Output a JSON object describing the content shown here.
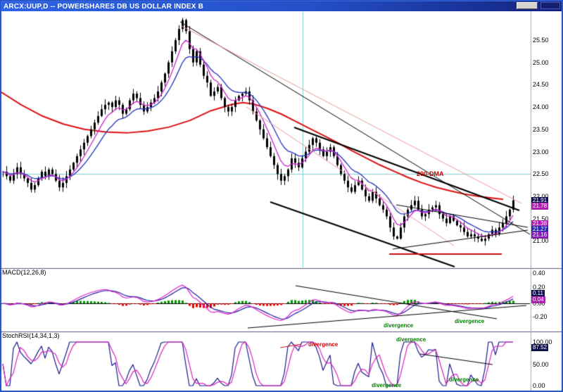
{
  "window": {
    "title": "ARCX:UUP,D -- POWERSHARES DB US DOLLAR INDEX B"
  },
  "chart_data": {
    "type": "candlestick",
    "symbol": "ARCX:UUP",
    "timeframe": "D",
    "price_panel": {
      "y_range": [
        20.4,
        26.15
      ],
      "ticks": [
        {
          "label": "25.50",
          "y": 57
        },
        {
          "label": "25.00",
          "y": 89
        },
        {
          "label": "24.50",
          "y": 120
        },
        {
          "label": "24.00",
          "y": 152
        },
        {
          "label": "23.50",
          "y": 184
        },
        {
          "label": "23.00",
          "y": 216
        },
        {
          "label": "22.50",
          "y": 247
        },
        {
          "label": "22.00",
          "y": 279
        },
        {
          "label": "21.50",
          "y": 311
        },
        {
          "label": "21.00",
          "y": 342
        }
      ],
      "boxed_labels": [
        {
          "label": "21.91",
          "y": 285,
          "bg": "#10104f"
        },
        {
          "label": "21.78",
          "y": 293,
          "bg": "#b020b0"
        },
        {
          "label": "21.38",
          "y": 318,
          "bg": "#b020b0"
        },
        {
          "label": "21.27",
          "y": 326,
          "bg": "#2a2ab0"
        },
        {
          "label": "21.16",
          "y": 334,
          "bg": "#8820b8"
        }
      ],
      "x_start": 4,
      "x_step": 5,
      "closes": [
        22.55,
        22.45,
        22.35,
        22.5,
        22.65,
        22.5,
        22.4,
        22.3,
        22.15,
        22.25,
        22.4,
        22.55,
        22.45,
        22.6,
        22.5,
        22.35,
        22.2,
        22.3,
        22.45,
        22.6,
        22.75,
        22.9,
        23.05,
        23.2,
        23.35,
        23.5,
        23.65,
        23.8,
        23.95,
        24.05,
        24.1,
        24.0,
        24.15,
        24.05,
        23.85,
        23.95,
        24.15,
        24.3,
        24.2,
        24.05,
        23.9,
        24.0,
        24.1,
        24.2,
        24.35,
        24.55,
        24.75,
        25.0,
        25.25,
        25.5,
        25.75,
        25.95,
        25.7,
        25.3,
        25.0,
        25.25,
        24.95,
        24.7,
        24.55,
        24.25,
        24.35,
        24.45,
        24.2,
        24.0,
        23.9,
        24.0,
        24.15,
        24.25,
        24.3,
        24.35,
        24.15,
        23.9,
        23.7,
        23.5,
        23.3,
        23.1,
        22.9,
        22.7,
        22.5,
        22.35,
        22.45,
        22.6,
        22.85,
        22.75,
        22.65,
        22.85,
        23.0,
        23.15,
        23.3,
        23.2,
        23.05,
        22.9,
        23.0,
        23.1,
        22.9,
        22.7,
        22.5,
        22.35,
        22.2,
        22.1,
        22.25,
        22.35,
        22.15,
        22.0,
        21.9,
        22.1,
        21.95,
        21.8,
        21.7,
        21.55,
        21.3,
        21.1,
        21.05,
        21.3,
        21.55,
        21.7,
        21.8,
        21.9,
        21.7,
        21.55,
        21.6,
        21.7,
        21.75,
        21.8,
        21.6,
        21.5,
        21.4,
        21.55,
        21.45,
        21.35,
        21.3,
        21.2,
        21.1,
        21.15,
        21.1,
        21.05,
        21.0,
        21.05,
        21.15,
        21.25,
        21.15,
        21.3,
        21.4,
        21.55,
        21.7,
        21.91
      ],
      "dma200": [
        [
          0,
          24.35
        ],
        [
          30,
          24.05
        ],
        [
          60,
          23.8
        ],
        [
          90,
          23.62
        ],
        [
          120,
          23.5
        ],
        [
          150,
          23.44
        ],
        [
          180,
          23.42
        ],
        [
          210,
          23.46
        ],
        [
          240,
          23.55
        ],
        [
          270,
          23.7
        ],
        [
          300,
          23.92
        ],
        [
          330,
          24.06
        ],
        [
          345,
          24.1
        ],
        [
          360,
          24.07
        ],
        [
          380,
          23.97
        ],
        [
          400,
          23.84
        ],
        [
          420,
          23.68
        ],
        [
          440,
          23.52
        ],
        [
          460,
          23.36
        ],
        [
          480,
          23.2
        ],
        [
          500,
          23.02
        ],
        [
          520,
          22.86
        ],
        [
          540,
          22.7
        ],
        [
          560,
          22.56
        ],
        [
          580,
          22.42
        ],
        [
          600,
          22.3
        ],
        [
          620,
          22.2
        ],
        [
          640,
          22.12
        ],
        [
          660,
          22.05
        ],
        [
          680,
          22.0
        ],
        [
          700,
          21.96
        ],
        [
          715,
          21.93
        ]
      ],
      "annotations": [
        {
          "text": "200-DMA",
          "x": 592,
          "y": 243,
          "color": "#cc0000",
          "size": 9
        }
      ]
    },
    "macd_panel": {
      "title": "MACD(12,26,8)",
      "title_pos": {
        "x": 3,
        "y": 383
      },
      "y_range": [
        -0.38,
        0.44
      ],
      "ticks": [
        {
          "label": "0.40",
          "y": 388
        },
        {
          "label": "0.20",
          "y": 408
        },
        {
          "label": "0.00",
          "y": 431
        },
        {
          "label": "-0.20",
          "y": 450
        }
      ],
      "boxed_labels": [
        {
          "label": "0.11",
          "y": 417,
          "bg": "#10104f"
        },
        {
          "label": "0.04",
          "y": 426,
          "bg": "#b020b0"
        }
      ],
      "annotations": [
        {
          "text": "divergence",
          "x": 545,
          "y": 459,
          "color": "#008000",
          "size": 8
        },
        {
          "text": "divergence",
          "x": 646,
          "y": 453,
          "color": "#008000",
          "size": 8
        }
      ]
    },
    "stochrsi_panel": {
      "title": "StochRSI(14,34,1,3)",
      "title_pos": {
        "x": 3,
        "y": 473
      },
      "y_range": [
        0,
        100
      ],
      "ticks": [
        {
          "label": "100.00",
          "y": 486
        },
        {
          "label": "50.00",
          "y": 518
        },
        {
          "label": "0.00",
          "y": 548
        }
      ],
      "boxed_labels": [
        {
          "label": "87.52",
          "y": 494,
          "bg": "#10104f"
        }
      ],
      "annotations": [
        {
          "text": "divergence",
          "x": 438,
          "y": 486,
          "color": "#cc0000",
          "size": 8
        },
        {
          "text": "divergence",
          "x": 563,
          "y": 479,
          "color": "#008000",
          "size": 8
        },
        {
          "text": "divergence",
          "x": 528,
          "y": 544,
          "color": "#008000",
          "size": 8
        },
        {
          "text": "divergence",
          "x": 638,
          "y": 536,
          "color": "#008000",
          "size": 8
        }
      ]
    },
    "drawn_lines": [
      {
        "x1": 256,
        "y1": 31,
        "x2": 753,
        "y2": 333,
        "color": "#000000",
        "w": 1
      },
      {
        "x1": 258,
        "y1": 37,
        "x2": 741,
        "y2": 289,
        "color": "#e89b9b",
        "w": 1
      },
      {
        "x1": 350,
        "y1": 152,
        "x2": 645,
        "y2": 349,
        "color": "#e89b9b",
        "w": 1
      },
      {
        "x1": 418,
        "y1": 181,
        "x2": 738,
        "y2": 299,
        "color": "#000000",
        "w": 2
      },
      {
        "x1": 384,
        "y1": 287,
        "x2": 646,
        "y2": 379,
        "color": "#000000",
        "w": 2
      },
      {
        "x1": 563,
        "y1": 291,
        "x2": 750,
        "y2": 323,
        "color": "#000000",
        "w": 1
      },
      {
        "x1": 558,
        "y1": 354,
        "x2": 750,
        "y2": 327,
        "color": "#000000",
        "w": 1
      },
      {
        "x1": 553,
        "y1": 361,
        "x2": 713,
        "y2": 361,
        "color": "#cc1111",
        "w": 2
      },
      {
        "x1": 352,
        "y1": 466,
        "x2": 748,
        "y2": 434,
        "color": "#000000",
        "w": 1
      },
      {
        "x1": 420,
        "y1": 406,
        "x2": 706,
        "y2": 453,
        "color": "#000000",
        "w": 1
      },
      {
        "x1": 597,
        "y1": 503,
        "x2": 700,
        "y2": 518,
        "color": "#000000",
        "w": 1
      },
      {
        "x1": 398,
        "y1": 494,
        "x2": 428,
        "y2": 489,
        "color": "#cc1111",
        "w": 1
      }
    ],
    "crosshair": {
      "vertical_x": 430,
      "horizontal_y": 247,
      "color": "#7fd0d0"
    },
    "colors": {
      "candle": "#000000",
      "ma_fast": "#cc22cc",
      "ma_slow": "#2233bb",
      "dma200": "#dd1111",
      "macd_line": "#dd22cc",
      "macd_signal": "#2020a0",
      "hist_pos": "#009900",
      "hist_neg": "#ee0000",
      "stoch_k": "#1a1a8c",
      "stoch_d": "#dd22bb",
      "separator": "#5a5a7a",
      "window_border": "#2050c8",
      "axis_line": "#aaaaaa"
    }
  }
}
